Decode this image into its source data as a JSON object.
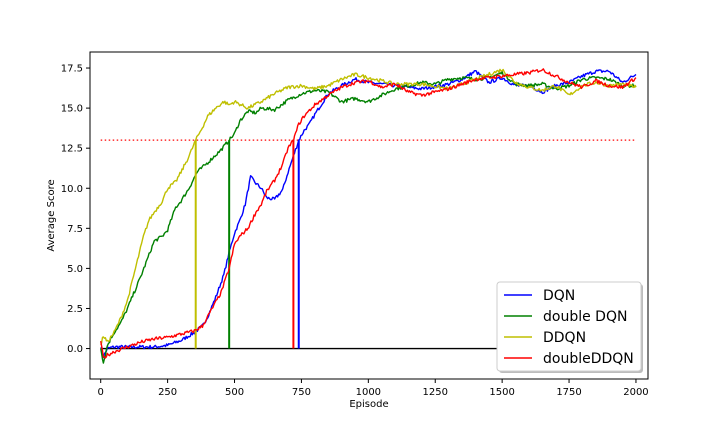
{
  "chart_data": {
    "type": "line",
    "title": "",
    "xlabel": "Episode",
    "ylabel": "Average Score",
    "xlim": [
      -40,
      2045
    ],
    "ylim": [
      -1.9,
      18.5
    ],
    "xticks": [
      0,
      250,
      500,
      750,
      1000,
      1250,
      1500,
      1750,
      2000
    ],
    "yticks": [
      0.0,
      2.5,
      5.0,
      7.5,
      10.0,
      12.5,
      15.0,
      17.5
    ],
    "xtick_labels": [
      "0",
      "250",
      "500",
      "750",
      "1000",
      "1250",
      "1500",
      "1750",
      "2000"
    ],
    "ytick_labels": [
      "0.0",
      "2.5",
      "5.0",
      "7.5",
      "10.0",
      "12.5",
      "15.0",
      "17.5"
    ],
    "grid": false,
    "legend_position": "lower-right",
    "target_line": {
      "y": 13,
      "x_range": [
        0,
        2000
      ],
      "color": "#ff0000",
      "style": "dotted"
    },
    "zero_line": {
      "y": 0,
      "x_range": [
        0,
        1500
      ],
      "color": "#000000"
    },
    "series": [
      {
        "name": "DQN",
        "color": "#0000ff",
        "solved_episode": 740,
        "x": [
          0,
          10,
          25,
          50,
          100,
          150,
          200,
          250,
          300,
          350,
          380,
          400,
          430,
          460,
          480,
          500,
          520,
          540,
          560,
          580,
          600,
          620,
          650,
          680,
          700,
          720,
          740,
          760,
          780,
          800,
          850,
          900,
          950,
          1000,
          1100,
          1200,
          1300,
          1350,
          1400,
          1450,
          1500,
          1550,
          1600,
          1650,
          1700,
          1750,
          1800,
          1850,
          1900,
          1950,
          2000
        ],
        "y": [
          0.2,
          -0.5,
          0.0,
          0.1,
          0.1,
          0.1,
          0.1,
          0.2,
          0.5,
          1.0,
          1.4,
          2.0,
          3.2,
          4.6,
          6.0,
          7.2,
          8.0,
          9.0,
          10.7,
          10.3,
          10.0,
          9.4,
          9.3,
          9.9,
          11.0,
          12.0,
          13.0,
          13.6,
          14.0,
          14.6,
          15.9,
          16.4,
          16.8,
          16.6,
          16.4,
          16.2,
          16.5,
          16.8,
          17.3,
          16.6,
          16.9,
          16.4,
          16.4,
          16.0,
          16.4,
          16.6,
          17.0,
          17.3,
          17.3,
          16.6,
          17.1
        ]
      },
      {
        "name": "double DQN",
        "color": "#008000",
        "solved_episode": 480,
        "x": [
          0,
          10,
          25,
          50,
          75,
          100,
          150,
          200,
          230,
          250,
          280,
          300,
          330,
          360,
          400,
          450,
          480,
          500,
          520,
          550,
          580,
          600,
          650,
          700,
          750,
          800,
          850,
          900,
          950,
          1000,
          1100,
          1200,
          1250,
          1300,
          1350,
          1400,
          1450,
          1500,
          1550,
          1600,
          1650,
          1700,
          1750,
          1800,
          1850,
          1900,
          1950,
          2000
        ],
        "y": [
          0.1,
          -0.9,
          0.2,
          1.0,
          1.6,
          2.5,
          4.5,
          6.7,
          7.0,
          7.4,
          8.8,
          9.2,
          10.0,
          11.0,
          11.6,
          12.4,
          13.0,
          13.4,
          14.2,
          14.8,
          14.7,
          15.0,
          14.9,
          15.5,
          15.9,
          16.1,
          16.0,
          15.4,
          15.6,
          15.4,
          16.2,
          16.6,
          16.5,
          16.8,
          16.9,
          16.8,
          16.9,
          17.2,
          16.5,
          16.4,
          16.5,
          16.2,
          16.4,
          16.8,
          16.9,
          16.8,
          16.4,
          16.4
        ]
      },
      {
        "name": "DDQN",
        "color": "#bfbf00",
        "solved_episode": 355,
        "x": [
          0,
          10,
          25,
          50,
          75,
          100,
          130,
          160,
          180,
          200,
          230,
          250,
          280,
          300,
          330,
          355,
          380,
          400,
          430,
          460,
          480,
          500,
          550,
          600,
          650,
          700,
          750,
          800,
          850,
          900,
          950,
          1000,
          1100,
          1200,
          1300,
          1400,
          1500,
          1550,
          1600,
          1650,
          1700,
          1750,
          1800,
          1850,
          1900,
          1950,
          2000
        ],
        "y": [
          0.2,
          0.8,
          0.4,
          1.0,
          1.9,
          3.0,
          5.0,
          7.0,
          8.0,
          8.5,
          9.2,
          10.0,
          10.4,
          11.0,
          12.0,
          13.0,
          13.8,
          14.5,
          15.0,
          15.4,
          15.2,
          15.4,
          15.0,
          15.4,
          15.9,
          16.3,
          16.4,
          16.2,
          16.4,
          16.8,
          17.1,
          16.9,
          16.5,
          16.5,
          16.2,
          16.8,
          17.4,
          16.6,
          16.3,
          16.1,
          16.4,
          15.8,
          16.4,
          16.6,
          16.4,
          16.5,
          16.3
        ]
      },
      {
        "name": "doubleDDQN",
        "color": "#ff0000",
        "solved_episode": 720,
        "x": [
          0,
          10,
          25,
          50,
          100,
          150,
          200,
          250,
          300,
          350,
          380,
          400,
          450,
          480,
          500,
          520,
          550,
          580,
          600,
          620,
          650,
          680,
          700,
          720,
          740,
          760,
          800,
          850,
          900,
          950,
          1000,
          1050,
          1100,
          1150,
          1200,
          1250,
          1300,
          1350,
          1400,
          1450,
          1500,
          1550,
          1600,
          1650,
          1700,
          1750,
          1800,
          1850,
          1900,
          1950,
          2000
        ],
        "y": [
          0.5,
          -0.6,
          -0.4,
          -0.2,
          0.1,
          0.4,
          0.6,
          0.7,
          0.9,
          1.1,
          1.4,
          2.0,
          3.5,
          5.0,
          6.5,
          7.0,
          7.5,
          8.5,
          9.0,
          9.8,
          10.5,
          11.5,
          12.5,
          13.0,
          14.0,
          14.5,
          15.2,
          15.8,
          16.3,
          16.6,
          16.7,
          16.3,
          16.5,
          16.0,
          15.8,
          16.0,
          16.2,
          16.5,
          16.8,
          16.9,
          17.0,
          17.1,
          17.2,
          17.4,
          17.0,
          16.6,
          16.3,
          16.7,
          16.4,
          16.3,
          16.9
        ]
      }
    ]
  }
}
